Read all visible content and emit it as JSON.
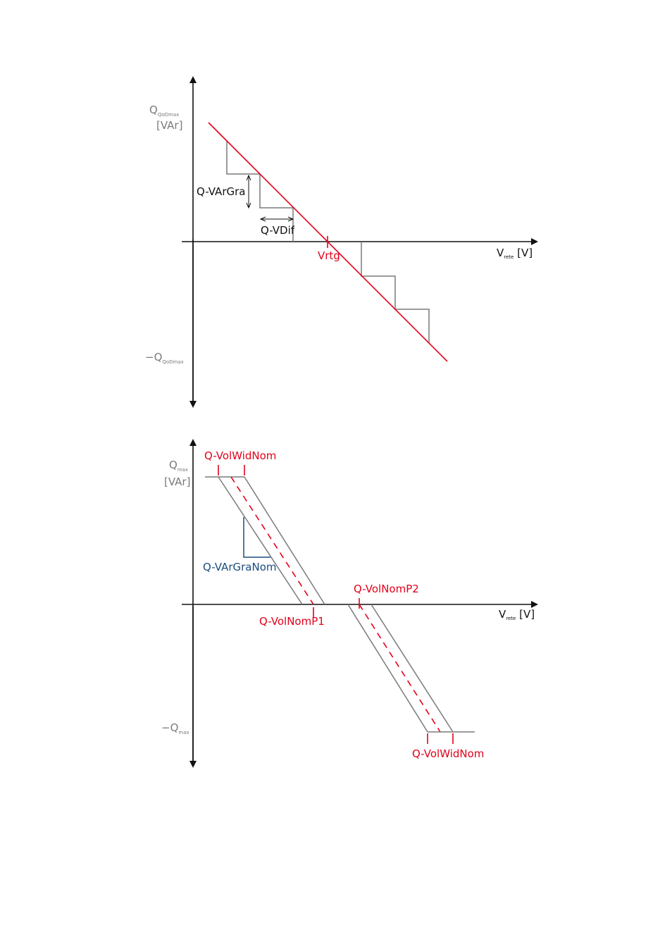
{
  "colors": {
    "axis": "#111111",
    "characteristic": "#e2001a",
    "step": "#7a7a7a",
    "band": "#7a7a7a",
    "gradient": "#1a4d80"
  },
  "top": {
    "y_label_main": "Q",
    "y_label_sub": "QoDmax",
    "y_label_unit": "[VAr]",
    "neg_label_main": "−Q",
    "neg_label_sub": "QoDmax",
    "x_label_main": "V",
    "x_label_sub": "rete",
    "x_label_unit": " [V]",
    "gradient_label": "Q-VArGra",
    "vdif_label": "Q-VDif",
    "vrtg_label": "Vrtg"
  },
  "bottom": {
    "y_label_main": "Q",
    "y_label_sub": "max",
    "y_label_unit": "[VAr]",
    "neg_label_main": "−Q",
    "neg_label_sub": "max",
    "x_label_main": "V",
    "x_label_sub": "rete",
    "x_label_unit": " [V]",
    "width_label_top": "Q-VolWidNom",
    "width_label_bottom": "Q-VolWidNom",
    "gradient_label": "Q-VArGraNom",
    "p1_label": "Q-VolNomP1",
    "p2_label": "Q-VolNomP2"
  }
}
